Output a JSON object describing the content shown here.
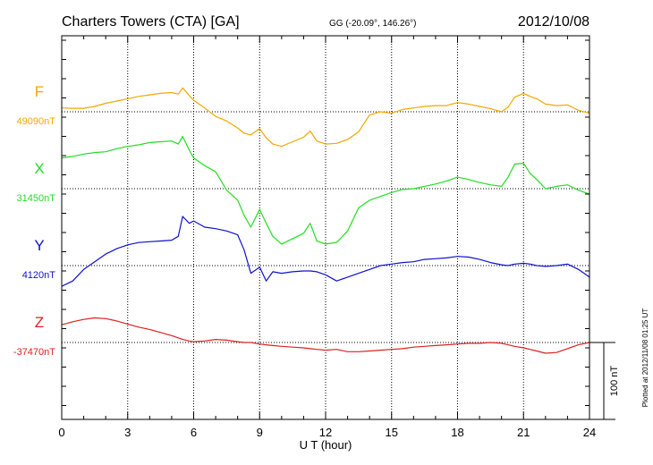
{
  "chart_data": {
    "type": "line",
    "title": "Charters Towers (CTA)  [GA]",
    "coords": "GG (-20.09°, 146.26°)",
    "date": "2012/10/08",
    "xlabel": "U T (hour)",
    "xlim": [
      0,
      24
    ],
    "xticks": [
      "0",
      "3",
      "6",
      "9",
      "12",
      "15",
      "18",
      "21",
      "24"
    ],
    "grid": true,
    "scale_label": "100 nT",
    "plotted_note": "Plotted at 2012/11/08 01:25 UT",
    "series": [
      {
        "name": "F",
        "baseline": "49090nT",
        "color": "#f0a800",
        "x": [
          0,
          0.5,
          1,
          1.5,
          2,
          2.5,
          3,
          3.5,
          4,
          4.5,
          5,
          5.3,
          5.5,
          5.8,
          6,
          6.5,
          7,
          7.5,
          8,
          8.3,
          8.6,
          9,
          9.3,
          9.6,
          10,
          10.5,
          11,
          11.3,
          11.6,
          12,
          12.5,
          13,
          13.5,
          14,
          14.5,
          15,
          15.5,
          16,
          16.5,
          17,
          17.5,
          18,
          18.5,
          19,
          19.5,
          20,
          20.3,
          20.6,
          21,
          21.3,
          21.6,
          22,
          22.5,
          23,
          23.5,
          24
        ],
        "y": [
          5,
          4.5,
          4.5,
          7,
          11,
          14,
          17,
          20,
          22,
          24,
          25,
          23,
          31,
          21,
          15,
          5,
          -6,
          -12,
          -21,
          -28,
          -30,
          -22,
          -34,
          -42,
          -45,
          -39,
          -33,
          -25,
          -38,
          -42,
          -41,
          -36,
          -26,
          -4,
          0,
          -2,
          3,
          5,
          7,
          8,
          8,
          12,
          10,
          7,
          4,
          0,
          6,
          19,
          24,
          20,
          17,
          10,
          8,
          9,
          2,
          -2
        ]
      },
      {
        "name": "X",
        "baseline": "31450nT",
        "color": "#22dd22",
        "x": [
          0,
          0.5,
          1,
          1.5,
          2,
          2.5,
          3,
          3.5,
          4,
          4.5,
          5,
          5.3,
          5.5,
          5.8,
          6,
          6.5,
          7,
          7.5,
          8,
          8.3,
          8.6,
          9,
          9.3,
          9.6,
          10,
          10.5,
          11,
          11.3,
          11.6,
          12,
          12.5,
          13,
          13.5,
          14,
          14.5,
          15,
          15.5,
          16,
          16.5,
          17,
          17.5,
          18,
          18.5,
          19,
          19.5,
          20,
          20.3,
          20.6,
          21,
          21.3,
          21.6,
          22,
          22.5,
          23,
          23.5,
          24
        ],
        "y": [
          40,
          42,
          45,
          47,
          48,
          52,
          55,
          57,
          60,
          61,
          62,
          58,
          68,
          50,
          40,
          30,
          22,
          -2,
          -15,
          -35,
          -50,
          -27,
          -45,
          -62,
          -72,
          -65,
          -58,
          -45,
          -68,
          -72,
          -70,
          -55,
          -25,
          -15,
          -10,
          -5,
          -1,
          0,
          3,
          6,
          10,
          15,
          12,
          8,
          5,
          3,
          15,
          32,
          33,
          20,
          12,
          0,
          3,
          5,
          -2,
          -7
        ]
      },
      {
        "name": "Y",
        "baseline": "4120nT",
        "color": "#1010cc",
        "x": [
          0,
          0.5,
          1,
          1.5,
          2,
          2.5,
          3,
          3.5,
          4,
          4.5,
          5,
          5.3,
          5.5,
          5.8,
          6,
          6.5,
          7,
          7.5,
          8,
          8.3,
          8.6,
          9,
          9.3,
          9.6,
          10,
          10.5,
          11,
          11.3,
          11.6,
          12,
          12.5,
          13,
          13.5,
          14,
          14.5,
          15,
          15.5,
          16,
          16.5,
          17,
          17.5,
          18,
          18.5,
          19,
          19.5,
          20,
          20.3,
          20.6,
          21,
          21.3,
          21.6,
          22,
          22.5,
          23,
          23.5,
          24
        ],
        "y": [
          -27,
          -20,
          -5,
          5,
          15,
          22,
          27,
          30,
          31,
          32,
          33,
          38,
          64,
          55,
          58,
          50,
          48,
          45,
          40,
          20,
          -10,
          -2,
          -20,
          -8,
          -10,
          -8,
          -7,
          -7,
          -8,
          -12,
          -20,
          -15,
          -10,
          -5,
          0,
          2,
          4,
          5,
          8,
          9,
          10,
          12,
          11,
          8,
          4,
          1,
          0,
          2,
          3,
          2,
          0,
          -1,
          0,
          2,
          -5,
          -15
        ]
      },
      {
        "name": "Z",
        "baseline": "-37470nT",
        "color": "#dd2020",
        "x": [
          0,
          0.5,
          1,
          1.5,
          2,
          2.5,
          3,
          3.5,
          4,
          4.5,
          5,
          5.3,
          5.5,
          5.8,
          6,
          6.5,
          7,
          7.5,
          8,
          8.3,
          8.6,
          9,
          9.3,
          9.6,
          10,
          10.5,
          11,
          11.3,
          11.6,
          12,
          12.5,
          13,
          13.5,
          14,
          14.5,
          15,
          15.5,
          16,
          16.5,
          17,
          17.5,
          18,
          18.5,
          19,
          19.5,
          20,
          20.3,
          20.6,
          21,
          21.3,
          21.6,
          22,
          22.5,
          23,
          23.5,
          24
        ],
        "y": [
          23,
          27,
          30,
          32,
          31,
          28,
          24,
          20,
          17,
          13,
          9,
          6,
          4,
          2,
          1,
          2,
          4,
          3,
          1,
          0,
          0,
          -2,
          -3,
          -4,
          -5,
          -6,
          -7,
          -8,
          -9,
          -10,
          -9,
          -12,
          -12,
          -11,
          -10,
          -9,
          -8,
          -6,
          -5,
          -4,
          -3,
          -2,
          -1,
          -1,
          0,
          -1,
          -3,
          -5,
          -7,
          -9,
          -11,
          -14,
          -13,
          -8,
          -3,
          0
        ]
      }
    ]
  }
}
